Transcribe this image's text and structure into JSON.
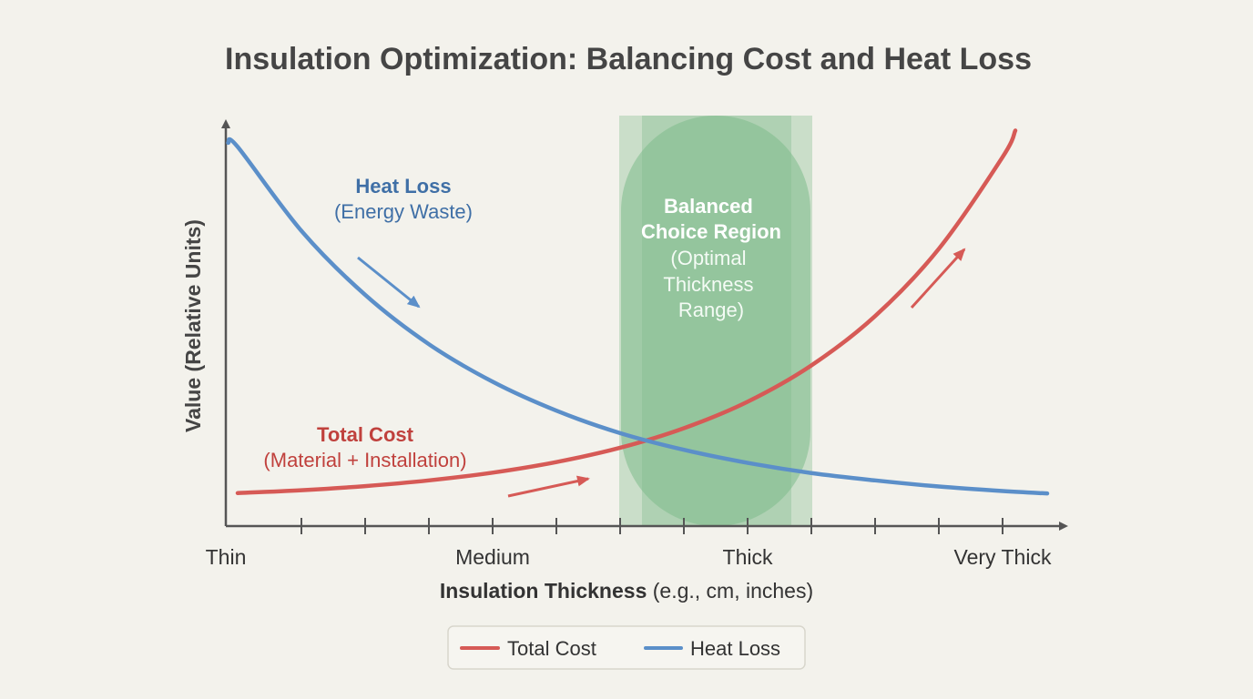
{
  "chart_data": {
    "type": "line",
    "title": "Insulation Optimization: Balancing Cost and Heat Loss",
    "xlabel_bold": "Insulation Thickness",
    "xlabel_rest": " (e.g., cm, inches)",
    "ylabel": "Value (Relative Units)",
    "x_tick_labels": [
      {
        "x": 0,
        "label": "Thin"
      },
      {
        "x": 4,
        "label": "Medium"
      },
      {
        "x": 8,
        "label": "Thick"
      },
      {
        "x": 12,
        "label": "Very Thick"
      }
    ],
    "x_ticks": [
      1,
      2,
      3,
      4,
      5,
      6,
      7,
      8,
      9,
      10,
      11,
      12
    ],
    "xlim": [
      -0.2,
      13.3
    ],
    "ylim": [
      0,
      10
    ],
    "grid": false,
    "legend_placement": "bottom-center",
    "series": [
      {
        "name": "Total Cost",
        "color": "#d65a56",
        "x": [
          0,
          1,
          2,
          3,
          4,
          5,
          6,
          7,
          8,
          9,
          10,
          11,
          12,
          12.2
        ],
        "y": [
          0.81,
          0.88,
          0.98,
          1.12,
          1.31,
          1.57,
          1.92,
          2.4,
          3.05,
          3.94,
          5.15,
          6.8,
          9.05,
          9.7
        ]
      },
      {
        "name": "Heat Loss",
        "color": "#5b8fc9",
        "x": [
          -0.15,
          0,
          1,
          2,
          3,
          4,
          5,
          6,
          7,
          8,
          9,
          10,
          11,
          12,
          12.7
        ],
        "y": [
          9.4,
          9.3,
          7.24,
          5.67,
          4.46,
          3.54,
          2.83,
          2.28,
          1.87,
          1.55,
          1.3,
          1.12,
          0.97,
          0.86,
          0.8
        ]
      }
    ],
    "optimal_region": {
      "x_range": [
        6,
        9
      ],
      "color": "#7dbb8a",
      "title_lines": [
        "Balanced",
        "Choice Region"
      ],
      "subtitle_lines": [
        "(Optimal",
        "Thickness",
        "Range)"
      ]
    },
    "annotations": {
      "heat_loss": {
        "title": "Heat Loss",
        "subtitle": "(Energy Waste)"
      },
      "total_cost": {
        "title": "Total Cost",
        "subtitle": "(Material + Installation)"
      }
    }
  }
}
